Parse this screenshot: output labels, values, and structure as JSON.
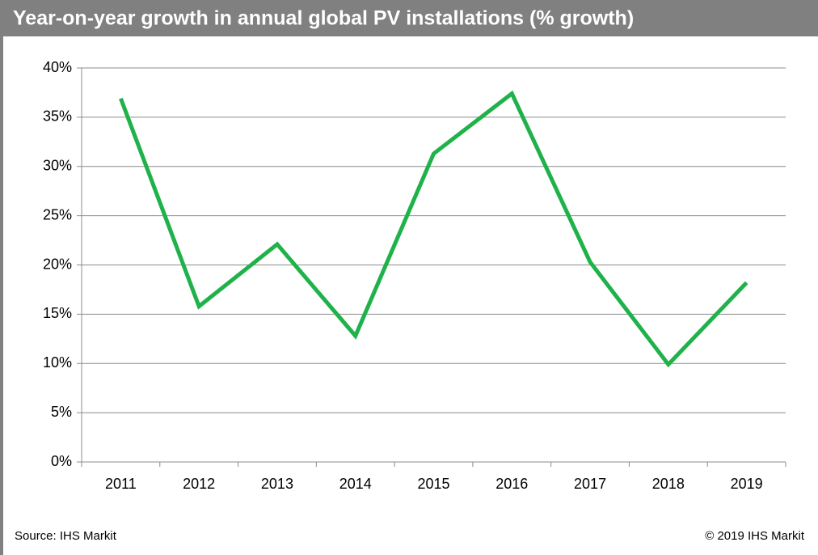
{
  "chart_data": {
    "type": "line",
    "title": "Year-on-year growth in annual global PV installations (% growth)",
    "categories": [
      "2011",
      "2012",
      "2013",
      "2014",
      "2015",
      "2016",
      "2017",
      "2018",
      "2019"
    ],
    "series": [
      {
        "name": "Year-on-year growth",
        "color": "#1fb24a",
        "values": [
          36.9,
          15.8,
          22.1,
          12.8,
          31.3,
          37.4,
          20.3,
          9.9,
          18.2
        ]
      }
    ],
    "ylim": [
      0,
      40
    ],
    "yticks": [
      {
        "value": 0,
        "label": "0%"
      },
      {
        "value": 5,
        "label": "5%"
      },
      {
        "value": 10,
        "label": "10%"
      },
      {
        "value": 15,
        "label": "15%"
      },
      {
        "value": 20,
        "label": "20%"
      },
      {
        "value": 25,
        "label": "25%"
      },
      {
        "value": 30,
        "label": "30%"
      },
      {
        "value": 35,
        "label": "35%"
      },
      {
        "value": 40,
        "label": "40%"
      }
    ],
    "grid": true,
    "source": "Source: IHS Markit",
    "copyright": "© 2019 IHS Markit"
  }
}
